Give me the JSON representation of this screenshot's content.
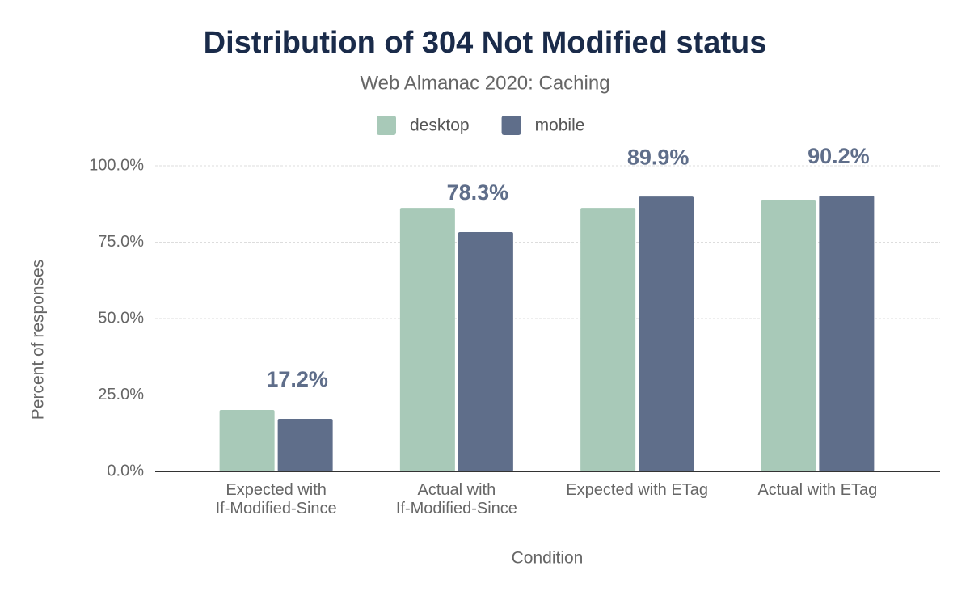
{
  "chart_data": {
    "type": "bar",
    "title": "Distribution of 304 Not Modified status",
    "subtitle": "Web Almanac 2020: Caching",
    "x_label": "Condition",
    "y_label": "Percent of responses",
    "categories": [
      "Expected with\nIf-Modified-Since",
      "Actual with\nIf-Modified-Since",
      "Expected with ETag",
      "Actual with ETag"
    ],
    "series": [
      {
        "name": "desktop",
        "color": "#a8c9b8",
        "values": [
          20.1,
          86.2,
          86.2,
          88.9
        ]
      },
      {
        "name": "mobile",
        "color": "#5f6e8a",
        "values": [
          17.2,
          78.3,
          89.9,
          90.2
        ],
        "value_labels": [
          "17.2%",
          "78.3%",
          "89.9%",
          "90.2%"
        ]
      }
    ],
    "ylim": [
      0,
      100
    ],
    "yticks": [
      {
        "value": 0,
        "label": "0.0%"
      },
      {
        "value": 25,
        "label": "25.0%"
      },
      {
        "value": 50,
        "label": "50.0%"
      },
      {
        "value": 75,
        "label": "75.0%"
      },
      {
        "value": 100,
        "label": "100.0%"
      }
    ],
    "grid": true,
    "legend": "top"
  }
}
